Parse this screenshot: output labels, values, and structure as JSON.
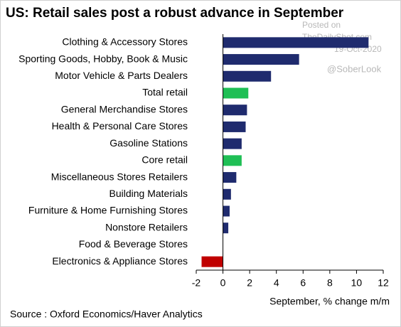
{
  "chart_data": {
    "type": "hbar",
    "title": "US: Retail sales post a robust advance in September",
    "categories": [
      "Clothing & Accessory Stores",
      "Sporting Goods, Hobby, Book & Music",
      "Motor Vehicle & Parts Dealers",
      "Total retail",
      "General Merchandise Stores",
      "Health & Personal Care Stores",
      "Gasoline Stations",
      "Core retail",
      "Miscellaneous Stores Retailers",
      "Building Materials",
      "Furniture & Home Furnishing Stores",
      "Nonstore Retailers",
      "Food & Beverage Stores",
      "Electronics & Appliance Stores"
    ],
    "values": [
      10.9,
      5.7,
      3.6,
      1.9,
      1.8,
      1.7,
      1.4,
      1.4,
      1.0,
      0.6,
      0.5,
      0.4,
      0.0,
      -1.6
    ],
    "colors": [
      "#1f2b6e",
      "#1f2b6e",
      "#1f2b6e",
      "#1fbf55",
      "#1f2b6e",
      "#1f2b6e",
      "#1f2b6e",
      "#1fbf55",
      "#1f2b6e",
      "#1f2b6e",
      "#1f2b6e",
      "#1f2b6e",
      "#1f2b6e",
      "#c00000"
    ],
    "xlim": [
      -2,
      12
    ],
    "xticks": [
      -2,
      0,
      2,
      4,
      6,
      8,
      10,
      12
    ],
    "xlabel": "September, % change m/m",
    "source": "Source : Oxford Economics/Haver Analytics",
    "annotations": [
      "Posted on",
      "TheDailyShot.com",
      "19-Oct-2020",
      "@SoberLook"
    ]
  }
}
